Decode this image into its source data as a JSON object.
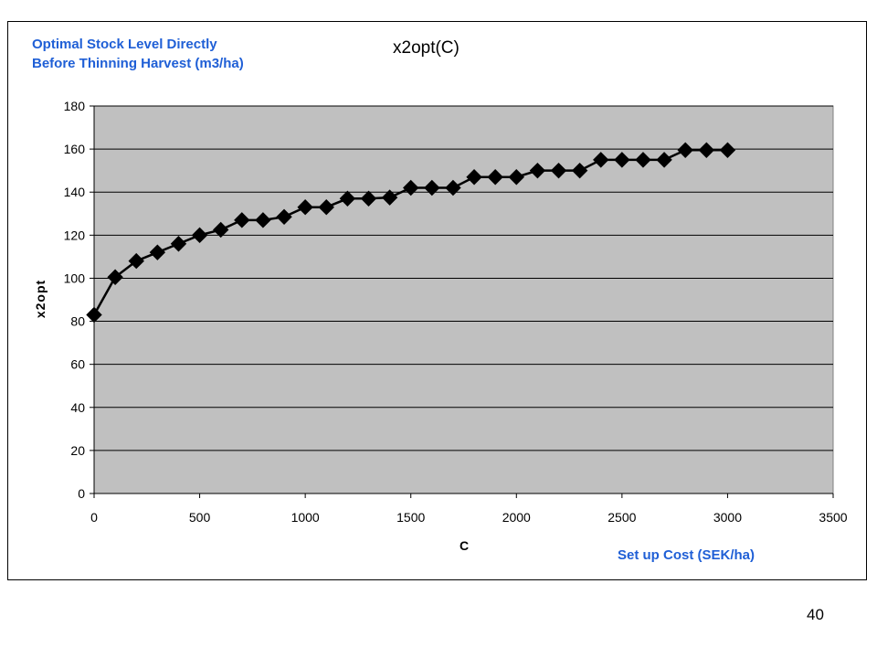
{
  "annotations": {
    "title_note_line1": "Optimal Stock Level Directly",
    "title_note_line2": "Before Thinning Harvest (m3/ha)",
    "xaxis_note": "Set up Cost (SEK/ha)"
  },
  "page_number": "40",
  "colors": {
    "plot_background": "#c0c0c0",
    "annotation_blue": "#1f5fd6",
    "series": "#000000"
  },
  "chart_data": {
    "type": "line",
    "title": "x2opt(C)",
    "xlabel": "C",
    "ylabel": "x2opt",
    "xlim": [
      0,
      3500
    ],
    "ylim": [
      0,
      180
    ],
    "xticks": [
      0,
      500,
      1000,
      1500,
      2000,
      2500,
      3000,
      3500
    ],
    "yticks": [
      0,
      20,
      40,
      60,
      80,
      100,
      120,
      140,
      160,
      180
    ],
    "grid": "horizontal",
    "marker": "diamond",
    "series": [
      {
        "x": [
          0,
          100,
          200,
          300,
          400,
          500,
          600,
          700,
          800,
          900,
          1000,
          1100,
          1200,
          1300,
          1400,
          1500,
          1600,
          1700,
          1800,
          1900,
          2000,
          2100,
          2200,
          2300,
          2400,
          2500,
          2600,
          2700,
          2800,
          2900,
          3000
        ],
        "values": [
          83,
          100.5,
          108,
          112,
          116,
          120,
          122.5,
          127,
          127,
          128.5,
          133,
          133,
          137,
          137,
          137.5,
          142,
          142,
          142,
          147,
          147,
          147,
          150,
          150,
          150,
          155,
          155,
          155,
          155,
          159.5,
          159.5,
          159.5
        ]
      }
    ]
  }
}
